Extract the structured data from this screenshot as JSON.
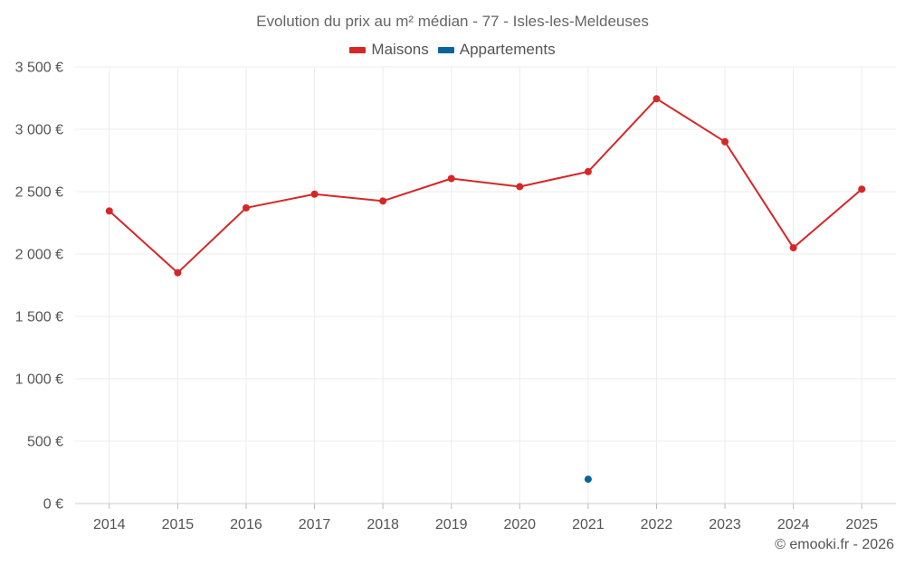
{
  "chart_data": {
    "type": "line",
    "title": "Evolution du prix au m² médian - 77 - Isles-les-Meldeuses",
    "xlabel": "",
    "ylabel": "",
    "categories": [
      "2014",
      "2015",
      "2016",
      "2017",
      "2018",
      "2019",
      "2020",
      "2021",
      "2022",
      "2023",
      "2024",
      "2025"
    ],
    "ylim": [
      0,
      3500
    ],
    "yticks": [
      0,
      500,
      1000,
      1500,
      2000,
      2500,
      3000,
      3500
    ],
    "ytick_labels": [
      "0 €",
      "500 €",
      "1 000 €",
      "1 500 €",
      "2 000 €",
      "2 500 €",
      "3 000 €",
      "3 500 €"
    ],
    "grid": true,
    "legend_position": "top-center",
    "series": [
      {
        "name": "Maisons",
        "color": "#d62728",
        "values": [
          2345,
          1850,
          2370,
          2480,
          2425,
          2605,
          2540,
          2660,
          3245,
          2900,
          2050,
          2520
        ]
      },
      {
        "name": "Appartements",
        "color": "#08639b",
        "values": [
          null,
          null,
          null,
          null,
          null,
          null,
          null,
          195,
          null,
          null,
          null,
          null
        ]
      }
    ],
    "credit": "© emooki.fr - 2026"
  }
}
